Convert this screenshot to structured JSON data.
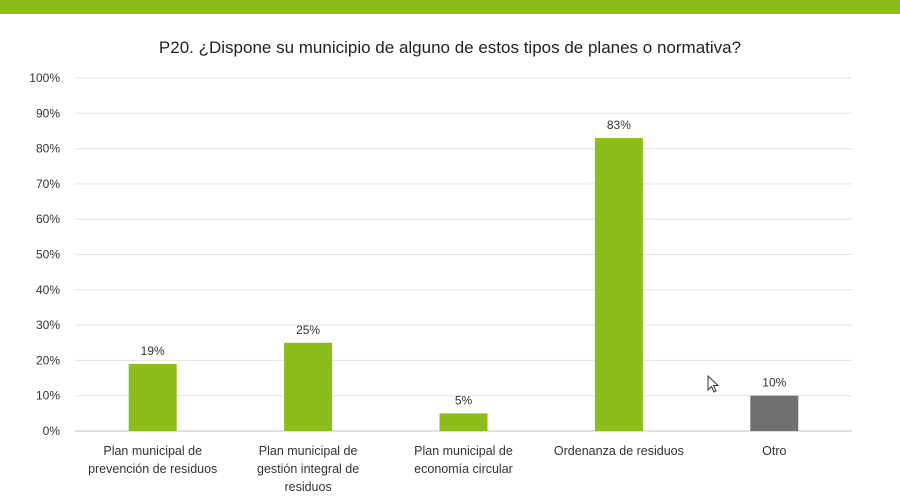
{
  "header": {
    "accent_color": "#8cbd1a"
  },
  "chart_data": {
    "type": "bar",
    "title": "P20. ¿Dispone su municipio de alguno de estos tipos de planes o normativa?",
    "categories": [
      [
        "Plan municipal de",
        "prevención de residuos"
      ],
      [
        "Plan municipal de",
        "gestión integral de",
        "residuos"
      ],
      [
        "Plan municipal de",
        "economía circular"
      ],
      [
        "Ordenanza de residuos"
      ],
      [
        "Otro"
      ]
    ],
    "values": [
      19,
      25,
      5,
      83,
      10
    ],
    "data_labels": [
      "19%",
      "25%",
      "5%",
      "83%",
      "10%"
    ],
    "bar_colors": [
      "#8cbd1a",
      "#8cbd1a",
      "#8cbd1a",
      "#8cbd1a",
      "#707070"
    ],
    "yticks": [
      "0%",
      "10%",
      "20%",
      "30%",
      "40%",
      "50%",
      "60%",
      "70%",
      "80%",
      "90%",
      "100%"
    ],
    "ylim": [
      0,
      100
    ],
    "grid": true,
    "legend": "none"
  }
}
